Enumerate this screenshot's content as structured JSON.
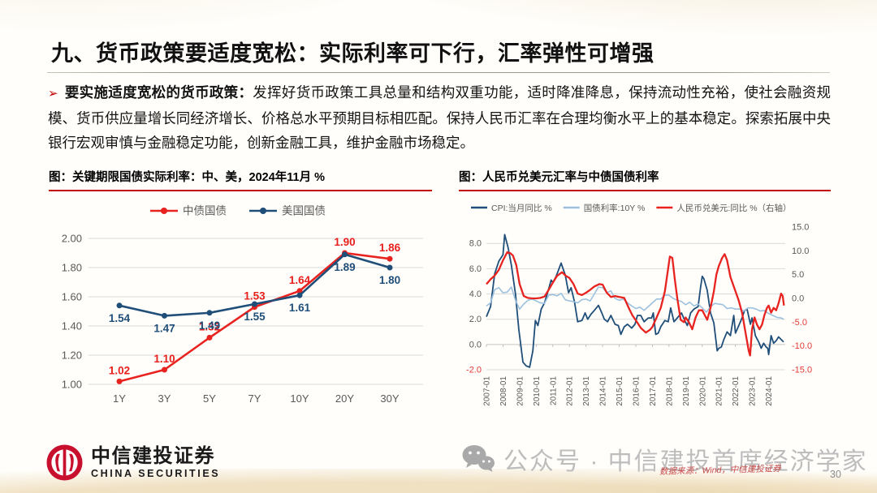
{
  "slide": {
    "title": "九、货币政策要适度宽松：实际利率可下行，汇率弹性可增强",
    "page_number": "30"
  },
  "paragraph": {
    "bullet": "➢",
    "lead": "要实施适度宽松的货币政策：",
    "body": "发挥好货币政策工具总量和结构双重功能，适时降准降息，保持流动性充裕，使社会融资规模、货币供应量增长同经济增长、价格总水平预期目标相匹配。保持人民币汇率在合理均衡水平上的基本稳定。探索拓展中央银行宏观审慎与金融稳定功能，创新金融工具，维护金融市场稳定。"
  },
  "footer": {
    "logo_cn": "中信建投证券",
    "logo_en": "CHINA SECURITIES",
    "watermark": "公众号 · 中信建投首席经济学家",
    "source": "数据来源：Wind，中信建投证券"
  },
  "colors": {
    "accent_red": "#e8231f",
    "dark_blue": "#1f4e79",
    "light_blue": "#9cc0dd",
    "caption_rule": "#c00000",
    "axis_text": "#595959",
    "negative_tick": "#e03a36",
    "grid": "#d9d9d9",
    "logo_red": "#c8102e"
  },
  "chart_data": [
    {
      "type": "line",
      "title": "图：关键期限国债实际利率：中、美，2024年11月 %",
      "categories": [
        "1Y",
        "3Y",
        "5Y",
        "7Y",
        "10Y",
        "20Y",
        "30Y"
      ],
      "series": [
        {
          "name": "中债国债",
          "color": "#e8231f",
          "label_color": "#e8201d",
          "label_side": "above",
          "values": [
            1.02,
            1.1,
            1.32,
            1.53,
            1.64,
            1.9,
            1.86
          ]
        },
        {
          "name": "美国国债",
          "color": "#1f4e79",
          "label_color": "#1f4e79",
          "label_side": "below",
          "values": [
            1.54,
            1.47,
            1.49,
            1.55,
            1.61,
            1.89,
            1.8
          ]
        }
      ],
      "ylim": [
        1.0,
        2.0
      ],
      "yticks": [
        2.0,
        1.8,
        1.6,
        1.4,
        1.2,
        1.0
      ],
      "grid": true,
      "legend_position": "top",
      "value_labels": true
    },
    {
      "type": "line",
      "title": "图：人民币兑美元汇率与中债国债利率",
      "x_range": [
        2007.0,
        2025.0
      ],
      "x_ticks": [
        "2007-01",
        "2008-01",
        "2009-01",
        "2010-01",
        "2011-01",
        "2012-01",
        "2013-01",
        "2014-01",
        "2015-01",
        "2016-01",
        "2017-01",
        "2018-01",
        "2019-01",
        "2020-01",
        "2021-01",
        "2022-01",
        "2023-01",
        "2024-01"
      ],
      "left_axis": {
        "lim": [
          -2.0,
          9.3
        ],
        "ticks": [
          8.0,
          6.0,
          4.0,
          2.0,
          0.0,
          -2.0
        ]
      },
      "right_axis": {
        "lim": [
          -15.0,
          15.0
        ],
        "ticks": [
          15.0,
          10.0,
          5.0,
          0.0,
          -5.0,
          -10.0,
          -15.0
        ]
      },
      "legend_position": "top",
      "grid": true,
      "series": [
        {
          "name": "CPI:当月同比 %",
          "axis": "left",
          "color": "#1f4e79",
          "width": 1.8,
          "x": [
            2007.0,
            2007.25,
            2007.5,
            2007.75,
            2008.0,
            2008.1,
            2008.3,
            2008.5,
            2008.75,
            2008.95,
            2009.2,
            2009.4,
            2009.6,
            2009.8,
            2009.95,
            2010.1,
            2010.3,
            2010.5,
            2010.75,
            2010.9,
            2011.0,
            2011.2,
            2011.5,
            2011.75,
            2011.95,
            2012.1,
            2012.3,
            2012.5,
            2012.75,
            2012.95,
            2013.1,
            2013.3,
            2013.5,
            2013.75,
            2013.95,
            2014.1,
            2014.3,
            2014.5,
            2014.75,
            2014.95,
            2015.1,
            2015.3,
            2015.5,
            2015.75,
            2015.95,
            2016.1,
            2016.3,
            2016.5,
            2016.75,
            2016.95,
            2017.05,
            2017.2,
            2017.35,
            2017.5,
            2017.75,
            2017.95,
            2018.1,
            2018.3,
            2018.5,
            2018.75,
            2018.95,
            2019.1,
            2019.3,
            2019.5,
            2019.75,
            2019.9,
            2020.0,
            2020.1,
            2020.3,
            2020.5,
            2020.7,
            2020.9,
            2021.0,
            2021.15,
            2021.3,
            2021.5,
            2021.7,
            2021.9,
            2022.0,
            2022.2,
            2022.4,
            2022.55,
            2022.7,
            2022.9,
            2023.0,
            2023.2,
            2023.4,
            2023.55,
            2023.7,
            2023.85,
            2023.95,
            2024.0,
            2024.15,
            2024.3,
            2024.45,
            2024.6,
            2024.75,
            2024.9
          ],
          "y": [
            2.2,
            3.0,
            5.6,
            6.6,
            7.1,
            8.7,
            7.7,
            6.3,
            4.0,
            1.2,
            -1.4,
            -1.7,
            -1.8,
            -0.5,
            1.9,
            1.5,
            2.8,
            3.3,
            4.4,
            5.1,
            4.9,
            5.4,
            6.45,
            5.5,
            4.1,
            4.5,
            3.4,
            1.8,
            1.9,
            2.5,
            2.0,
            2.4,
            2.7,
            3.1,
            2.5,
            2.0,
            1.8,
            2.3,
            1.6,
            1.5,
            0.8,
            1.4,
            1.6,
            1.3,
            1.6,
            2.3,
            2.3,
            1.8,
            2.1,
            2.1,
            2.5,
            0.8,
            0.9,
            1.4,
            1.9,
            1.8,
            2.9,
            1.8,
            2.1,
            2.5,
            1.9,
            1.5,
            2.5,
            2.8,
            3.0,
            4.5,
            5.4,
            5.2,
            4.3,
            2.5,
            1.7,
            -0.5,
            -0.3,
            -0.2,
            0.4,
            1.0,
            0.7,
            2.3,
            0.9,
            1.5,
            2.1,
            2.7,
            2.8,
            1.6,
            2.1,
            0.7,
            0.2,
            -0.3,
            0.1,
            -0.2,
            -0.3,
            -0.8,
            0.7,
            0.1,
            0.3,
            0.6,
            0.4,
            0.2
          ]
        },
        {
          "name": "国债利率:10Y %",
          "axis": "left",
          "color": "#9cc0dd",
          "width": 1.6,
          "x": [
            2007.0,
            2007.25,
            2007.5,
            2007.75,
            2008.0,
            2008.25,
            2008.5,
            2008.75,
            2009.0,
            2009.25,
            2009.5,
            2009.75,
            2010.0,
            2010.25,
            2010.5,
            2010.75,
            2011.0,
            2011.25,
            2011.5,
            2011.75,
            2012.0,
            2012.25,
            2012.5,
            2012.75,
            2013.0,
            2013.25,
            2013.5,
            2013.75,
            2014.0,
            2014.25,
            2014.5,
            2014.75,
            2015.0,
            2015.25,
            2015.5,
            2015.75,
            2016.0,
            2016.25,
            2016.5,
            2016.75,
            2017.0,
            2017.25,
            2017.5,
            2017.75,
            2018.0,
            2018.25,
            2018.5,
            2018.75,
            2019.0,
            2019.25,
            2019.5,
            2019.75,
            2020.0,
            2020.25,
            2020.5,
            2020.75,
            2021.0,
            2021.25,
            2021.5,
            2021.75,
            2022.0,
            2022.25,
            2022.5,
            2022.75,
            2023.0,
            2023.25,
            2023.5,
            2023.75,
            2024.0,
            2024.25,
            2024.5,
            2024.75,
            2024.9
          ],
          "y": [
            3.05,
            3.3,
            4.35,
            4.5,
            4.1,
            4.15,
            4.55,
            3.5,
            2.8,
            3.2,
            3.5,
            3.6,
            3.45,
            3.3,
            3.25,
            3.9,
            3.95,
            3.85,
            4.05,
            3.55,
            3.45,
            3.4,
            3.3,
            3.55,
            3.6,
            3.45,
            4.0,
            4.55,
            4.5,
            4.1,
            4.25,
            3.65,
            3.5,
            3.6,
            3.3,
            3.05,
            2.85,
            2.95,
            2.7,
            3.0,
            3.3,
            3.6,
            3.6,
            3.9,
            3.9,
            3.65,
            3.5,
            3.4,
            3.15,
            3.35,
            3.05,
            3.2,
            2.9,
            2.55,
            3.0,
            3.25,
            3.2,
            3.15,
            2.85,
            2.9,
            2.8,
            2.8,
            2.65,
            2.9,
            2.9,
            2.8,
            2.65,
            2.7,
            2.45,
            2.3,
            2.15,
            2.1,
            2.0
          ]
        },
        {
          "name": "人民币兑美元:同比 %（右轴）",
          "axis": "right",
          "color": "#e8231f",
          "width": 2.3,
          "x": [
            2007.0,
            2007.25,
            2007.5,
            2007.75,
            2008.0,
            2008.25,
            2008.45,
            2008.6,
            2008.8,
            2009.0,
            2009.25,
            2009.5,
            2009.75,
            2010.0,
            2010.25,
            2010.5,
            2010.75,
            2011.0,
            2011.25,
            2011.55,
            2011.8,
            2012.0,
            2012.25,
            2012.5,
            2012.75,
            2013.0,
            2013.25,
            2013.5,
            2013.8,
            2014.0,
            2014.25,
            2014.5,
            2014.75,
            2015.0,
            2015.3,
            2015.6,
            2015.8,
            2016.0,
            2016.3,
            2016.6,
            2016.85,
            2017.0,
            2017.25,
            2017.5,
            2017.75,
            2018.05,
            2018.2,
            2018.35,
            2018.5,
            2018.7,
            2018.9,
            2019.0,
            2019.2,
            2019.4,
            2019.6,
            2019.8,
            2020.0,
            2020.3,
            2020.5,
            2020.7,
            2020.85,
            2021.0,
            2021.2,
            2021.35,
            2021.5,
            2021.7,
            2021.9,
            2022.0,
            2022.2,
            2022.4,
            2022.6,
            2022.8,
            2022.88,
            2023.0,
            2023.15,
            2023.3,
            2023.45,
            2023.6,
            2023.75,
            2023.9,
            2024.0,
            2024.15,
            2024.3,
            2024.45,
            2024.6,
            2024.75,
            2024.85,
            2024.92
          ],
          "y": [
            3.0,
            4.0,
            4.8,
            6.0,
            8.0,
            9.7,
            9.5,
            9.0,
            7.0,
            3.0,
            0.5,
            0.1,
            0.0,
            0.0,
            0.1,
            0.4,
            1.8,
            3.3,
            4.7,
            5.5,
            4.7,
            4.3,
            3.0,
            1.0,
            0.7,
            1.2,
            1.8,
            2.5,
            3.0,
            2.9,
            1.2,
            0.3,
            0.5,
            0.3,
            0.1,
            -2.2,
            -3.6,
            -4.6,
            -6.2,
            -7.2,
            -6.6,
            -6.0,
            -4.0,
            -2.0,
            1.5,
            8.8,
            8.5,
            4.0,
            0.0,
            -4.5,
            -5.0,
            -4.0,
            -5.0,
            -6.5,
            -4.0,
            -2.5,
            -2.5,
            -4.5,
            -2.0,
            1.5,
            5.0,
            6.8,
            8.5,
            9.3,
            8.0,
            4.5,
            2.5,
            1.5,
            -0.5,
            -3.0,
            -7.0,
            -11.0,
            -12.0,
            -6.5,
            -4.0,
            -5.5,
            -6.5,
            -5.5,
            -3.5,
            -2.0,
            -1.5,
            -3.0,
            -2.0,
            -2.5,
            -1.0,
            1.0,
            0.5,
            -1.5
          ]
        }
      ]
    }
  ]
}
